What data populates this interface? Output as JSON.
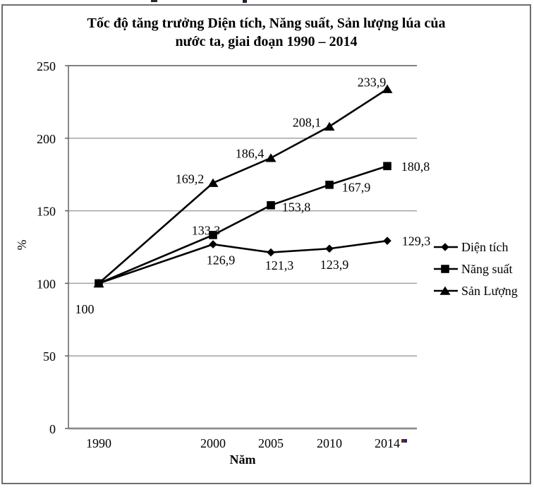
{
  "figure": {
    "title_line1": "Tốc độ tăng trưởng Diện tích, Năng suất, Sản lượng lúa của",
    "title_line2": "nước ta, giai đoạn 1990 – 2014",
    "ylabel": "%",
    "xlabel": "Năm"
  },
  "chart_data": {
    "type": "line",
    "title": "Tốc độ tăng trưởng Diện tích, Năng suất, Sản lượng lúa của nước ta, giai đoạn 1990 – 2014",
    "xlabel": "Năm",
    "ylabel": "%",
    "categories": [
      "1990",
      "2000",
      "2005",
      "2010",
      "2014"
    ],
    "series": [
      {
        "name": "Diện tích",
        "marker": "diamond",
        "values": [
          100,
          126.9,
          121.3,
          123.9,
          129.3
        ],
        "point_labels": [
          "100",
          "126,9",
          "121,3",
          "123,9",
          "129,3"
        ]
      },
      {
        "name": "Năng suất",
        "marker": "square",
        "values": [
          100,
          133.3,
          153.8,
          167.9,
          180.8
        ],
        "point_labels": [
          null,
          "133,3",
          "153,8",
          "167,9",
          "180,8"
        ]
      },
      {
        "name": "Sản Lượng",
        "marker": "triangle",
        "values": [
          100,
          169.2,
          186.4,
          208.1,
          233.9
        ],
        "point_labels": [
          null,
          "169,2",
          "186,4",
          "208,1",
          "233,9"
        ]
      }
    ],
    "ylim": [
      0,
      250
    ],
    "yticks": [
      0,
      50,
      100,
      150,
      200,
      250
    ],
    "grid": true,
    "legend_position": "right",
    "series_color": "#000000",
    "gridline_color": "#a3a3a3",
    "axis_color": "#595959"
  }
}
